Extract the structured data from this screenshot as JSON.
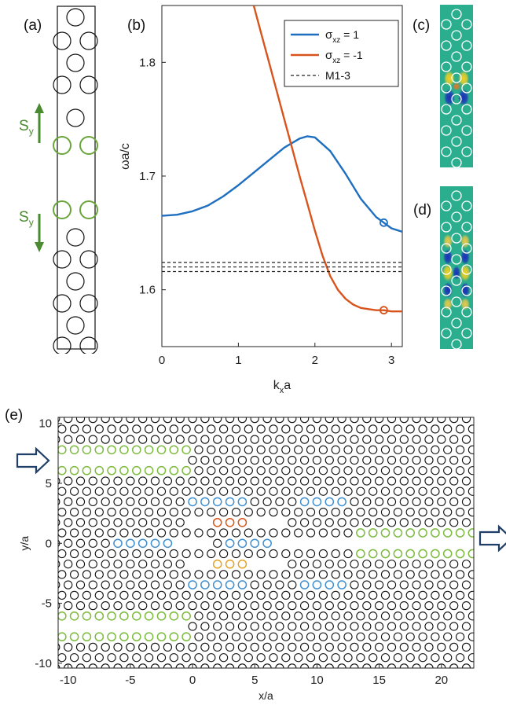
{
  "labels": {
    "a": "(a)",
    "b": "(b)",
    "c": "(c)",
    "d": "(d)",
    "e": "(e)"
  },
  "panel_a": {
    "sy_symbol": "S",
    "sy_sub": "y",
    "colors": {
      "hole": "#111111",
      "defect": "#6aa53a",
      "arrow": "#4a8a30"
    }
  },
  "chart_data": [
    {
      "type": "line",
      "title": "",
      "xlabel_main": "k",
      "xlabel_sub": "x",
      "xlabel_tail": "a",
      "ylabel": "ωa/c",
      "xlim": [
        0,
        3.14159
      ],
      "ylim": [
        1.55,
        1.85
      ],
      "xticks": [
        0,
        1,
        2,
        3
      ],
      "yticks": [
        1.6,
        1.7,
        1.8
      ],
      "xtick_labels": [
        "0",
        "1",
        "2",
        "3"
      ],
      "ytick_labels": [
        "1.6",
        "1.7",
        "1.8"
      ],
      "legend": {
        "placement": "top-right",
        "entries": [
          {
            "sym": "σ",
            "sub": "xz",
            "rest": " = 1",
            "color": "#1f6fc0",
            "dash": false
          },
          {
            "sym": "σ",
            "sub": "xz",
            "rest": " = -1",
            "color": "#d9541c",
            "dash": false
          },
          {
            "sym": "",
            "sub": "",
            "rest": "M1-3",
            "color": "#222222",
            "dash": true
          }
        ]
      },
      "series": [
        {
          "color": "#1f6fc0",
          "x": [
            0,
            0.2,
            0.4,
            0.6,
            0.8,
            1.0,
            1.2,
            1.4,
            1.6,
            1.8,
            1.9,
            2.0,
            2.2,
            2.4,
            2.6,
            2.8,
            2.9,
            3.0,
            3.14159
          ],
          "y": [
            1.665,
            1.666,
            1.669,
            1.674,
            1.682,
            1.692,
            1.703,
            1.714,
            1.725,
            1.733,
            1.735,
            1.734,
            1.722,
            1.702,
            1.68,
            1.664,
            1.659,
            1.654,
            1.651
          ]
        },
        {
          "color": "#d9541c",
          "x": [
            1.2,
            1.3,
            1.4,
            1.5,
            1.6,
            1.7,
            1.8,
            1.9,
            2.0,
            2.1,
            2.2,
            2.3,
            2.4,
            2.5,
            2.6,
            2.7,
            2.8,
            2.9,
            3.0,
            3.14159
          ],
          "y": [
            1.85,
            1.825,
            1.8,
            1.775,
            1.75,
            1.725,
            1.7,
            1.676,
            1.652,
            1.63,
            1.612,
            1.6,
            1.592,
            1.587,
            1.584,
            1.583,
            1.582,
            1.582,
            1.581,
            1.581
          ]
        },
        {
          "color": "#222222",
          "dashed": true,
          "x": [
            0,
            3.14159
          ],
          "y": [
            1.624,
            1.624
          ]
        },
        {
          "color": "#222222",
          "dashed": true,
          "x": [
            0,
            3.14159
          ],
          "y": [
            1.62,
            1.62
          ]
        },
        {
          "color": "#222222",
          "dashed": true,
          "x": [
            0,
            3.14159
          ],
          "y": [
            1.616,
            1.616
          ]
        }
      ],
      "markers": [
        {
          "x": 2.9,
          "y": 1.659,
          "color": "#1f6fc0"
        },
        {
          "x": 2.9,
          "y": 1.582,
          "color": "#d9541c"
        }
      ]
    },
    {
      "type": "scatter",
      "title": "",
      "xlabel": "x/a",
      "ylabel": "y/a",
      "xlim": [
        -10.8,
        22.6
      ],
      "ylim": [
        -10.4,
        10.5
      ],
      "xticks": [
        -10,
        -5,
        0,
        5,
        10,
        15,
        20
      ],
      "yticks": [
        -10,
        -5,
        0,
        5,
        10
      ],
      "xtick_labels": [
        "-10",
        "-5",
        "0",
        "5",
        "10",
        "15",
        "20"
      ],
      "ytick_labels": [
        "-10",
        "-5",
        "0",
        "5",
        "10"
      ],
      "colors": {
        "hole": "#111111",
        "green": "#7dbb3f",
        "blue": "#3f8fd0",
        "red": "#d9541c",
        "yellow": "#e3a327"
      },
      "hole_radius": 0.32
    }
  ],
  "field_maps": {
    "c": "mode-profile-c",
    "d": "mode-profile-d",
    "background": "#2aae8e"
  }
}
